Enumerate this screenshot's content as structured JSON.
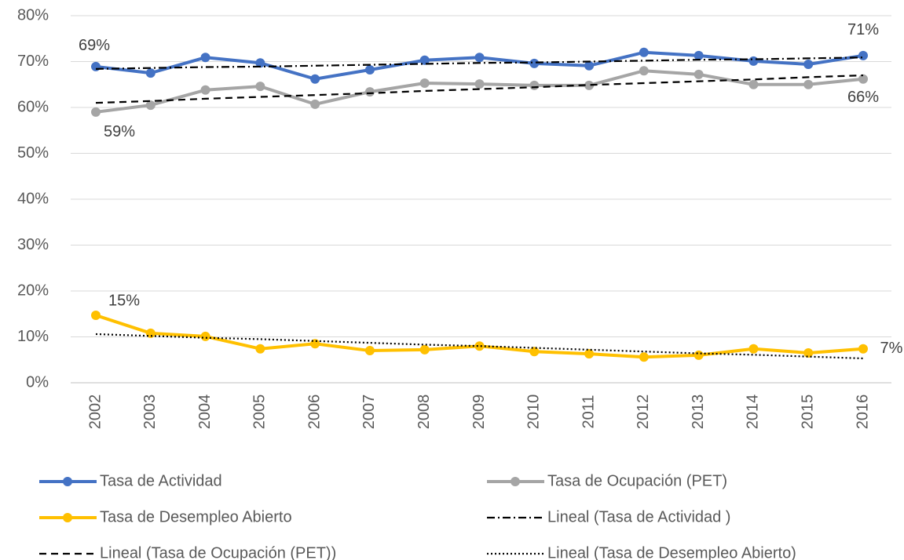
{
  "chart_data": {
    "type": "line",
    "categories": [
      "2002",
      "2003",
      "2004",
      "2005",
      "2006",
      "2007",
      "2008",
      "2009",
      "2010",
      "2011",
      "2012",
      "2013",
      "2014",
      "2015",
      "2016"
    ],
    "ylim": [
      0,
      80
    ],
    "yticks": [
      {
        "value": 0,
        "label": "0%"
      },
      {
        "value": 10,
        "label": "10%"
      },
      {
        "value": 20,
        "label": "20%"
      },
      {
        "value": 30,
        "label": "30%"
      },
      {
        "value": 40,
        "label": "40%"
      },
      {
        "value": 50,
        "label": "50%"
      },
      {
        "value": 60,
        "label": "60%"
      },
      {
        "value": 70,
        "label": "70%"
      },
      {
        "value": 80,
        "label": "80%"
      }
    ],
    "grid": true,
    "series": [
      {
        "name": "Tasa de Actividad",
        "color": "#4472c4",
        "marker": true,
        "values": [
          68.9,
          67.5,
          70.9,
          69.7,
          66.2,
          68.2,
          70.3,
          70.9,
          69.6,
          69.1,
          72.0,
          71.3,
          70.1,
          69.4,
          71.3
        ],
        "value_labels": [
          "69%",
          null,
          null,
          null,
          null,
          null,
          null,
          null,
          null,
          null,
          null,
          null,
          null,
          null,
          "71%"
        ]
      },
      {
        "name": "Tasa de Ocupación (PET)",
        "color": "#a5a5a5",
        "marker": true,
        "values": [
          59.0,
          60.5,
          63.8,
          64.6,
          60.7,
          63.4,
          65.3,
          65.1,
          64.8,
          64.8,
          68.0,
          67.2,
          65.0,
          65.0,
          66.2
        ],
        "value_labels": [
          "59%",
          null,
          null,
          null,
          null,
          null,
          null,
          null,
          null,
          null,
          null,
          null,
          null,
          null,
          "66%"
        ]
      },
      {
        "name": "Tasa de Desempleo Abierto",
        "color": "#ffc000",
        "marker": true,
        "values": [
          14.7,
          10.8,
          10.1,
          7.4,
          8.5,
          7.0,
          7.2,
          8.0,
          6.8,
          6.3,
          5.6,
          6.0,
          7.4,
          6.5,
          7.4
        ],
        "value_labels": [
          "15%",
          null,
          null,
          null,
          null,
          null,
          null,
          null,
          null,
          null,
          null,
          null,
          null,
          null,
          "7%"
        ]
      },
      {
        "name": "Lineal (Tasa de Actividad )",
        "color": "#000000",
        "dash": "dashdot",
        "values": [
          68.4,
          68.6,
          68.8,
          68.9,
          69.1,
          69.3,
          69.5,
          69.7,
          69.8,
          70.0,
          70.2,
          70.4,
          70.5,
          70.7,
          70.9
        ]
      },
      {
        "name": "Lineal (Tasa de Ocupación (PET))",
        "color": "#000000",
        "dash": "dash",
        "values": [
          61.0,
          61.4,
          61.9,
          62.3,
          62.7,
          63.1,
          63.6,
          64.0,
          64.4,
          64.9,
          65.3,
          65.7,
          66.1,
          66.6,
          67.0
        ]
      },
      {
        "name": "Lineal (Tasa de Desempleo Abierto)",
        "color": "#000000",
        "dash": "dot",
        "values": [
          10.6,
          10.2,
          9.8,
          9.5,
          9.1,
          8.7,
          8.3,
          8.0,
          7.6,
          7.2,
          6.8,
          6.4,
          6.1,
          5.7,
          5.3
        ]
      }
    ]
  }
}
